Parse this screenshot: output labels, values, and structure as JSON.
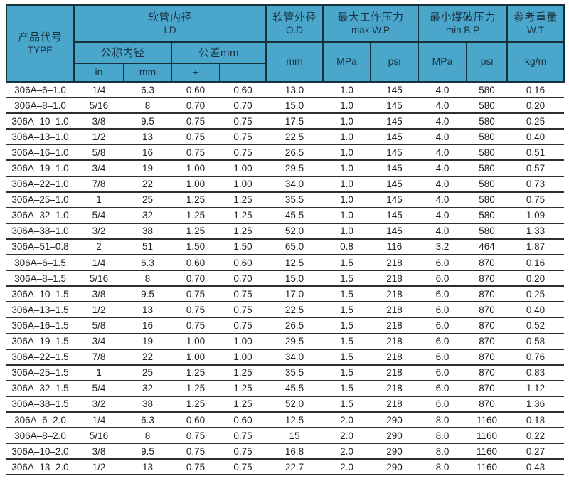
{
  "colors": {
    "header_bg": "#4BA6CB",
    "header_border": "#16303C",
    "header_text": "#1A3240",
    "row_line": "#2E2E2E",
    "data_text": "#1D1D1D",
    "page_bg": "#FFFFFF"
  },
  "header": {
    "type_cn": "产品代号",
    "type_en": "TYPE",
    "id_cn": "软管内径",
    "id_en": "I.D",
    "nominal_id": "公称内径",
    "tolerance": "公差mm",
    "unit_in": "in",
    "unit_mm": "mm",
    "tol_plus": "+",
    "tol_minus": "–",
    "od_cn": "软管外径",
    "od_en": "O.D",
    "od_unit": "mm",
    "wp_cn": "最大工作压力",
    "wp_en": "max W.P",
    "wp_mpa": "MPa",
    "wp_psi": "psi",
    "bp_cn": "最小爆破压力",
    "bp_en": "min B.P",
    "bp_mpa": "MPa",
    "bp_psi": "psi",
    "wt_cn": "参考重量",
    "wt_en": "W.T",
    "wt_unit": "kg/m"
  },
  "chart_data": {
    "type": "table",
    "columns": [
      "TYPE",
      "I.D in",
      "I.D mm",
      "tol +",
      "tol -",
      "O.D mm",
      "max W.P MPa",
      "max W.P psi",
      "min B.P MPa",
      "min B.P psi",
      "W.T kg/m"
    ],
    "rows": [
      [
        "306A–6–1.0",
        "1/4",
        "6.3",
        "0.60",
        "0.60",
        "13.0",
        "1.0",
        "145",
        "4.0",
        "580",
        "0.16"
      ],
      [
        "306A–8–1.0",
        "5/16",
        "8",
        "0.70",
        "0.70",
        "15.0",
        "1.0",
        "145",
        "4.0",
        "580",
        "0.20"
      ],
      [
        "306A–10–1.0",
        "3/8",
        "9.5",
        "0.75",
        "0.75",
        "17.5",
        "1.0",
        "145",
        "4.0",
        "580",
        "0.25"
      ],
      [
        "306A–13–1.0",
        "1/2",
        "13",
        "0.75",
        "0.75",
        "22.5",
        "1.0",
        "145",
        "4.0",
        "580",
        "0.40"
      ],
      [
        "306A–16–1.0",
        "5/8",
        "16",
        "0.75",
        "0.75",
        "26.5",
        "1.0",
        "145",
        "4.0",
        "580",
        "0.51"
      ],
      [
        "306A–19–1.0",
        "3/4",
        "19",
        "1.00",
        "1.00",
        "29.5",
        "1.0",
        "145",
        "4.0",
        "580",
        "0.57"
      ],
      [
        "306A–22–1.0",
        "7/8",
        "22",
        "1.00",
        "1.00",
        "34.0",
        "1.0",
        "145",
        "4.0",
        "580",
        "0.73"
      ],
      [
        "306A–25–1.0",
        "1",
        "25",
        "1.25",
        "1.25",
        "35.5",
        "1.0",
        "145",
        "4.0",
        "580",
        "0.75"
      ],
      [
        "306A–32–1.0",
        "5/4",
        "32",
        "1.25",
        "1.25",
        "45.5",
        "1.0",
        "145",
        "4.0",
        "580",
        "1.09"
      ],
      [
        "306A–38–1.0",
        "3/2",
        "38",
        "1.25",
        "1.25",
        "52.0",
        "1.0",
        "145",
        "4.0",
        "580",
        "1.33"
      ],
      [
        "306A–51–0.8",
        "2",
        "51",
        "1.50",
        "1.50",
        "65.0",
        "0.8",
        "116",
        "3.2",
        "464",
        "1.87"
      ],
      [
        "306A–6–1.5",
        "1/4",
        "6.3",
        "0.60",
        "0.60",
        "12.5",
        "1.5",
        "218",
        "6.0",
        "870",
        "0.16"
      ],
      [
        "306A–8–1.5",
        "5/16",
        "8",
        "0.70",
        "0.70",
        "15.0",
        "1.5",
        "218",
        "6.0",
        "870",
        "0.20"
      ],
      [
        "306A–10–1.5",
        "3/8",
        "9.5",
        "0.75",
        "0.75",
        "17.0",
        "1.5",
        "218",
        "6.0",
        "870",
        "0.25"
      ],
      [
        "306A–13–1.5",
        "1/2",
        "13",
        "0.75",
        "0.75",
        "22.5",
        "1.5",
        "218",
        "6.0",
        "870",
        "0.40"
      ],
      [
        "306A–16–1.5",
        "5/8",
        "16",
        "0.75",
        "0.75",
        "26.5",
        "1.5",
        "218",
        "6.0",
        "870",
        "0.52"
      ],
      [
        "306A–19–1.5",
        "3/4",
        "19",
        "1.00",
        "1.00",
        "29.5",
        "1.5",
        "218",
        "6.0",
        "870",
        "0.58"
      ],
      [
        "306A–22–1.5",
        "7/8",
        "22",
        "1.00",
        "1.00",
        "34.0",
        "1.5",
        "218",
        "6.0",
        "870",
        "0.76"
      ],
      [
        "306A–25–1.5",
        "1",
        "25",
        "1.25",
        "1.25",
        "35.5",
        "1.5",
        "218",
        "6.0",
        "870",
        "0.83"
      ],
      [
        "306A–32–1.5",
        "5/4",
        "32",
        "1.25",
        "1.25",
        "45.5",
        "1.5",
        "218",
        "6.0",
        "870",
        "1.12"
      ],
      [
        "306A–38–1.5",
        "3/2",
        "38",
        "1.25",
        "1.25",
        "52.0",
        "1.5",
        "218",
        "6.0",
        "870",
        "1.36"
      ],
      [
        "306A–6–2.0",
        "1/4",
        "6.3",
        "0.60",
        "0.60",
        "12.5",
        "2.0",
        "290",
        "8.0",
        "1160",
        "0.18"
      ],
      [
        "306A–8–2.0",
        "5/16",
        "8",
        "0.75",
        "0.75",
        "15",
        "2.0",
        "290",
        "8.0",
        "1160",
        "0.22"
      ],
      [
        "306A–10–2.0",
        "3/8",
        "9.5",
        "0.75",
        "0.75",
        "16.8",
        "2.0",
        "290",
        "8.0",
        "1160",
        "0.27"
      ],
      [
        "306A–13–2.0",
        "1/2",
        "13",
        "0.75",
        "0.75",
        "22.7",
        "2.0",
        "290",
        "8.0",
        "1160",
        "0.43"
      ]
    ]
  }
}
